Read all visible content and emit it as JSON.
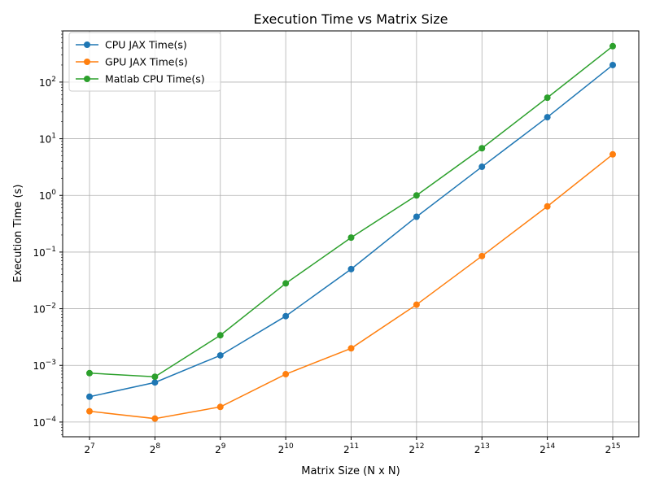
{
  "chart_data": {
    "type": "line",
    "title": "Execution Time vs Matrix Size",
    "xlabel": "Matrix Size (N x N)",
    "ylabel": "Execution Time (s)",
    "x": [
      128,
      256,
      512,
      1024,
      2048,
      4096,
      8192,
      16384,
      32768
    ],
    "x_tick_labels": [
      {
        "base": "2",
        "exp": "7"
      },
      {
        "base": "2",
        "exp": "8"
      },
      {
        "base": "2",
        "exp": "9"
      },
      {
        "base": "2",
        "exp": "10"
      },
      {
        "base": "2",
        "exp": "11"
      },
      {
        "base": "2",
        "exp": "12"
      },
      {
        "base": "2",
        "exp": "13"
      },
      {
        "base": "2",
        "exp": "14"
      },
      {
        "base": "2",
        "exp": "15"
      }
    ],
    "x_scale": "log2",
    "y_scale": "log10",
    "ylim": [
      5.5e-05,
      800
    ],
    "y_tick_labels": [
      {
        "value": 0.0001,
        "base": "10",
        "exp": "−4"
      },
      {
        "value": 0.001,
        "base": "10",
        "exp": "−3"
      },
      {
        "value": 0.01,
        "base": "10",
        "exp": "−2"
      },
      {
        "value": 0.1,
        "base": "10",
        "exp": "−1"
      },
      {
        "value": 1,
        "base": "10",
        "exp": "0"
      },
      {
        "value": 10,
        "base": "10",
        "exp": "1"
      },
      {
        "value": 100,
        "base": "10",
        "exp": "2"
      }
    ],
    "grid": true,
    "legend_position": "top-left",
    "series": [
      {
        "name": "CPU JAX Time(s)",
        "color": "#1f77b4",
        "values": [
          0.00028,
          0.0005,
          0.0015,
          0.0074,
          0.05,
          0.42,
          3.2,
          24,
          200
        ]
      },
      {
        "name": "GPU JAX Time(s)",
        "color": "#ff7f0e",
        "values": [
          0.000155,
          0.000115,
          0.000185,
          0.0007,
          0.002,
          0.0118,
          0.085,
          0.64,
          5.3
        ]
      },
      {
        "name": "Matlab CPU Time(s)",
        "color": "#2ca02c",
        "values": [
          0.00073,
          0.00063,
          0.0034,
          0.028,
          0.18,
          1.0,
          6.8,
          53,
          430
        ]
      }
    ]
  }
}
